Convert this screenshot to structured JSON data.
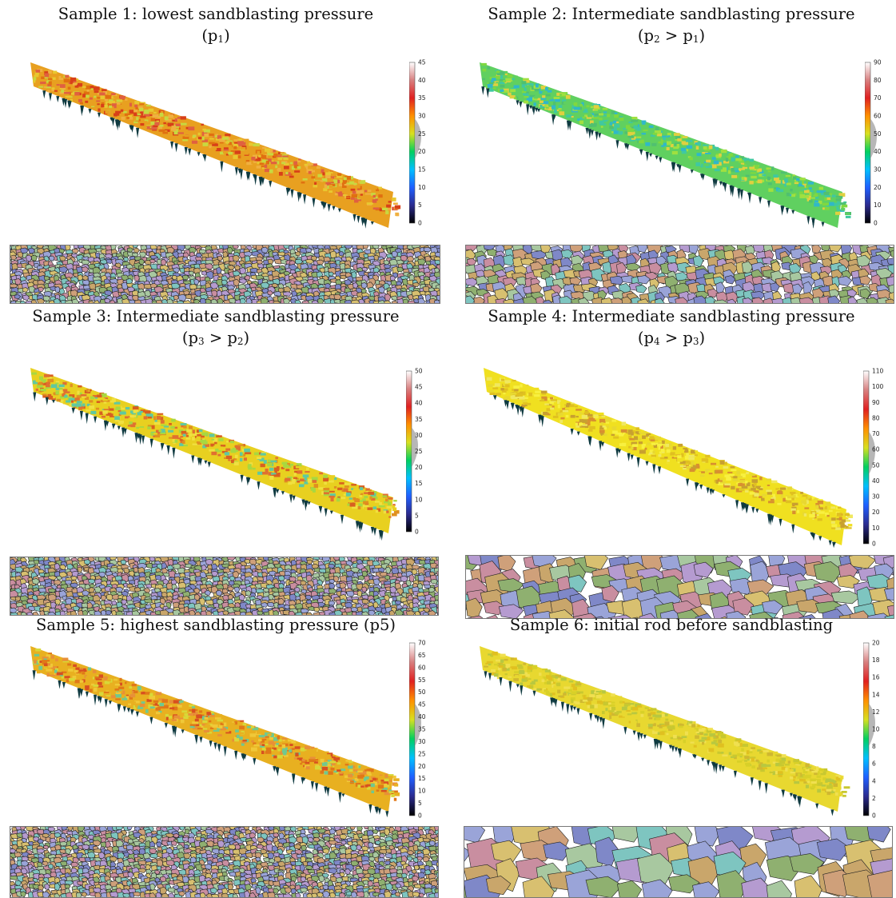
{
  "panels": [
    {
      "sample": "Sample 1",
      "title": "Sample 1: lowest sandblasting pressure",
      "sub": "(p1)",
      "sub_parts": [
        "(p",
        "1",
        ")"
      ],
      "scale_ticks": [
        "0",
        "5",
        "10",
        "15",
        "20",
        "25",
        "30",
        "35",
        "40",
        "45"
      ],
      "grain_size": "fine",
      "surface_palette": "red-orange"
    },
    {
      "sample": "Sample 2",
      "title": "Sample 2: Intermediate sandblasting pressure",
      "sub": "(p2 > p1)",
      "sub_parts": [
        "(p",
        "2",
        " > p",
        "1",
        ")"
      ],
      "scale_ticks": [
        "0",
        "10",
        "20",
        "30",
        "40",
        "50",
        "60",
        "70",
        "80",
        "90"
      ],
      "grain_size": "medium",
      "surface_palette": "green-cyan"
    },
    {
      "sample": "Sample 3",
      "title": "Sample 3: Intermediate sandblasting pressure",
      "sub": "(p3 > p2)",
      "sub_parts": [
        "(p",
        "3",
        " > p",
        "2",
        ")"
      ],
      "scale_ticks": [
        "0",
        "5",
        "10",
        "15",
        "20",
        "25",
        "30",
        "35",
        "40",
        "45",
        "50"
      ],
      "grain_size": "fine",
      "surface_palette": "yellow-orange"
    },
    {
      "sample": "Sample 4",
      "title": "Sample 4: Intermediate sandblasting pressure",
      "sub": "(p4 > p3)",
      "sub_parts": [
        "(p",
        "4",
        " > p",
        "3",
        ")"
      ],
      "scale_ticks": [
        "0",
        "10",
        "20",
        "30",
        "40",
        "50",
        "60",
        "70",
        "80",
        "90",
        "100",
        "110"
      ],
      "grain_size": "coarse",
      "surface_palette": "yellow"
    },
    {
      "sample": "Sample 5",
      "title": "Sample 5: highest sandblasting pressure (p5)",
      "sub": "",
      "sub_parts": [],
      "scale_ticks": [
        "0",
        "5",
        "10",
        "15",
        "20",
        "25",
        "30",
        "35",
        "40",
        "45",
        "50",
        "55",
        "60",
        "65",
        "70"
      ],
      "grain_size": "fine",
      "surface_palette": "orange-yellow"
    },
    {
      "sample": "Sample 6",
      "title": "Sample 6: initial rod before sandblasting",
      "sub": "",
      "sub_parts": [],
      "scale_ticks": [
        "0",
        "2",
        "4",
        "6",
        "8",
        "10",
        "12",
        "14",
        "16",
        "18",
        "20"
      ],
      "grain_size": "very-coarse",
      "surface_palette": "yellow-green"
    }
  ],
  "colors": {
    "cmap": [
      "#000000",
      "#2b2b8f",
      "#1f5fff",
      "#00c0ff",
      "#00d060",
      "#d8e020",
      "#ff9000",
      "#e02020",
      "#d88080",
      "#ffffff"
    ],
    "grain_palette": [
      "#8fb070",
      "#c9a66b",
      "#7f88c8",
      "#c98ea0",
      "#7ec5c0",
      "#b59bd0",
      "#d8c070",
      "#9aa4d8",
      "#a8c8a0",
      "#cfa07a"
    ]
  }
}
